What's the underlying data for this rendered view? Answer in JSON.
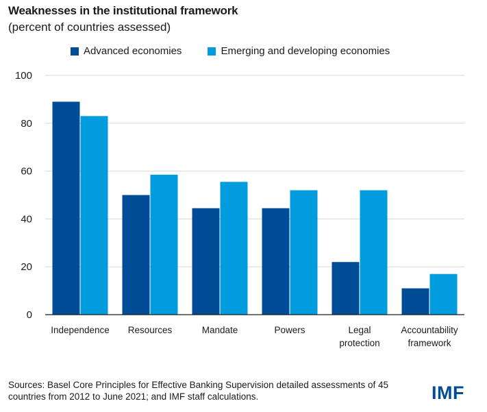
{
  "title": "Weaknesses in the institutional framework",
  "subtitle": "(percent of countries assessed)",
  "source": "Sources: Basel Core Principles for Effective Banking Supervision detailed assessments of 45 countries from 2012 to June 2021; and IMF staff calculations.",
  "logo": "IMF",
  "colors": {
    "advanced": "#004c97",
    "emerging": "#009cde",
    "grid": "#d9d9d9",
    "axis": "#1a1a1a"
  },
  "chart_data": {
    "type": "bar",
    "title": "Weaknesses in the institutional framework",
    "subtitle": "(percent of countries assessed)",
    "categories": [
      [
        "Independence"
      ],
      [
        "Resources"
      ],
      [
        "Mandate"
      ],
      [
        "Powers"
      ],
      [
        "Legal",
        "protection"
      ],
      [
        "Accountability",
        "framework"
      ]
    ],
    "series": [
      {
        "name": "Advanced economies",
        "values": [
          89,
          50,
          44.5,
          44.5,
          22,
          11
        ]
      },
      {
        "name": "Emerging and developing economies",
        "values": [
          83,
          58.5,
          55.5,
          52,
          52,
          17
        ]
      }
    ],
    "ylim": [
      0,
      100
    ],
    "yticks": [
      0,
      20,
      40,
      60,
      80,
      100
    ],
    "grid": true,
    "legend": "top"
  }
}
